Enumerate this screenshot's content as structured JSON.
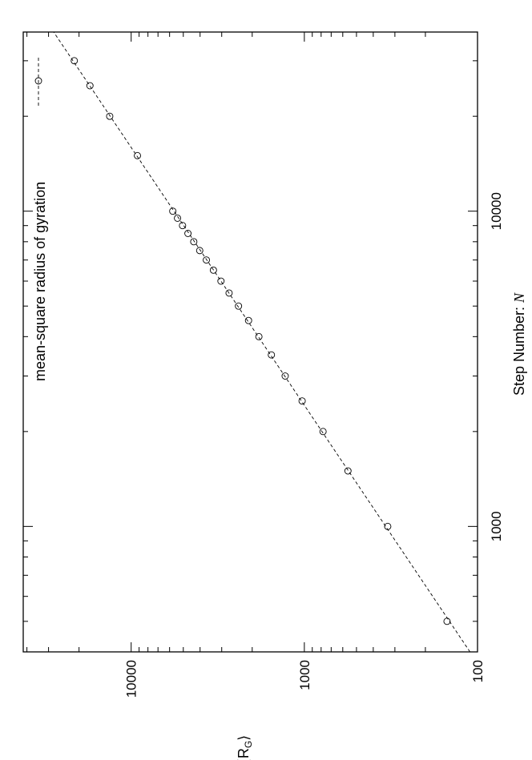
{
  "chart_data": {
    "type": "scatter",
    "orientation": "rotated-90-ccw",
    "xlabel": "Step Number:",
    "xlabel_symbol": "N",
    "ylabel": "⟨R",
    "ylabel_sub": "G",
    "ylabel_close": "⟩",
    "x_scale": "log",
    "y_scale": "log",
    "xlim": [
      400,
      37000
    ],
    "ylim": [
      100,
      42000
    ],
    "x_ticks": [
      {
        "value": 1000,
        "label": "1000"
      },
      {
        "value": 10000,
        "label": "10000"
      }
    ],
    "y_ticks": [
      {
        "value": 100,
        "label": "100"
      },
      {
        "value": 1000,
        "label": "1000"
      },
      {
        "value": 10000,
        "label": "10000"
      }
    ],
    "legend_position": "top-left",
    "grid": false,
    "series": [
      {
        "name": "mean-square radius of gyration",
        "marker": "open-circle",
        "fit_line": "dashed",
        "x": [
          500,
          1000,
          1500,
          2000,
          2500,
          3000,
          3500,
          4000,
          4500,
          5000,
          5500,
          6000,
          6500,
          7000,
          7500,
          8000,
          8500,
          9000,
          9500,
          10000,
          15000,
          20000,
          25000,
          30000
        ],
        "y": [
          150,
          330,
          560,
          780,
          1030,
          1290,
          1550,
          1830,
          2100,
          2400,
          2720,
          3030,
          3350,
          3680,
          4020,
          4350,
          4700,
          5050,
          5400,
          5750,
          9200,
          13300,
          17300,
          21300
        ]
      }
    ]
  }
}
